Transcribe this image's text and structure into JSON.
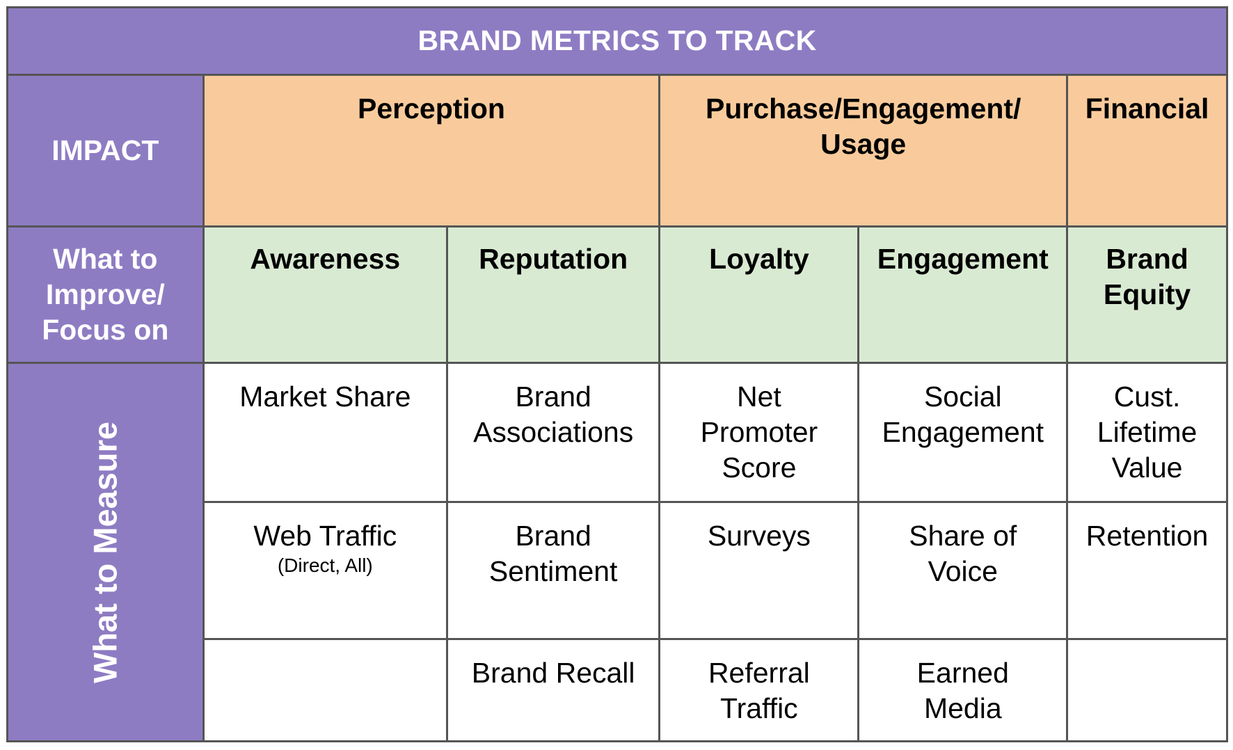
{
  "title": "BRAND METRICS TO TRACK",
  "row_labels": {
    "impact": "IMPACT",
    "focus": [
      "What to",
      "Improve/",
      "Focus on"
    ],
    "measure": "What to Measure"
  },
  "impact_headers": {
    "perception": "Perception",
    "purchase": [
      "Purchase/Engagement/",
      "Usage"
    ],
    "financial": "Financial"
  },
  "focus_headers": {
    "awareness": "Awareness",
    "reputation": "Reputation",
    "loyalty": "Loyalty",
    "engagement": "Engagement",
    "brand_equity": [
      "Brand",
      "Equity"
    ]
  },
  "measures": {
    "row1": {
      "awareness": [
        "Market Share"
      ],
      "reputation": [
        "Brand",
        "Associations"
      ],
      "loyalty": [
        "Net",
        "Promoter",
        "Score"
      ],
      "engagement": [
        "Social",
        "Engagement"
      ],
      "brand_equity": [
        "Cust.",
        "Lifetime",
        "Value"
      ]
    },
    "row2": {
      "awareness": [
        "Web Traffic"
      ],
      "awareness_note": "(Direct, All)",
      "reputation": [
        "Brand",
        "Sentiment"
      ],
      "loyalty": [
        "Surveys"
      ],
      "engagement": [
        "Share of",
        "Voice"
      ],
      "brand_equity": [
        "Retention"
      ]
    },
    "row3": {
      "awareness": [],
      "reputation": [
        "Brand Recall"
      ],
      "loyalty": [
        "Referral",
        "Traffic"
      ],
      "engagement": [
        "Earned",
        "Media"
      ],
      "brand_equity": []
    }
  }
}
